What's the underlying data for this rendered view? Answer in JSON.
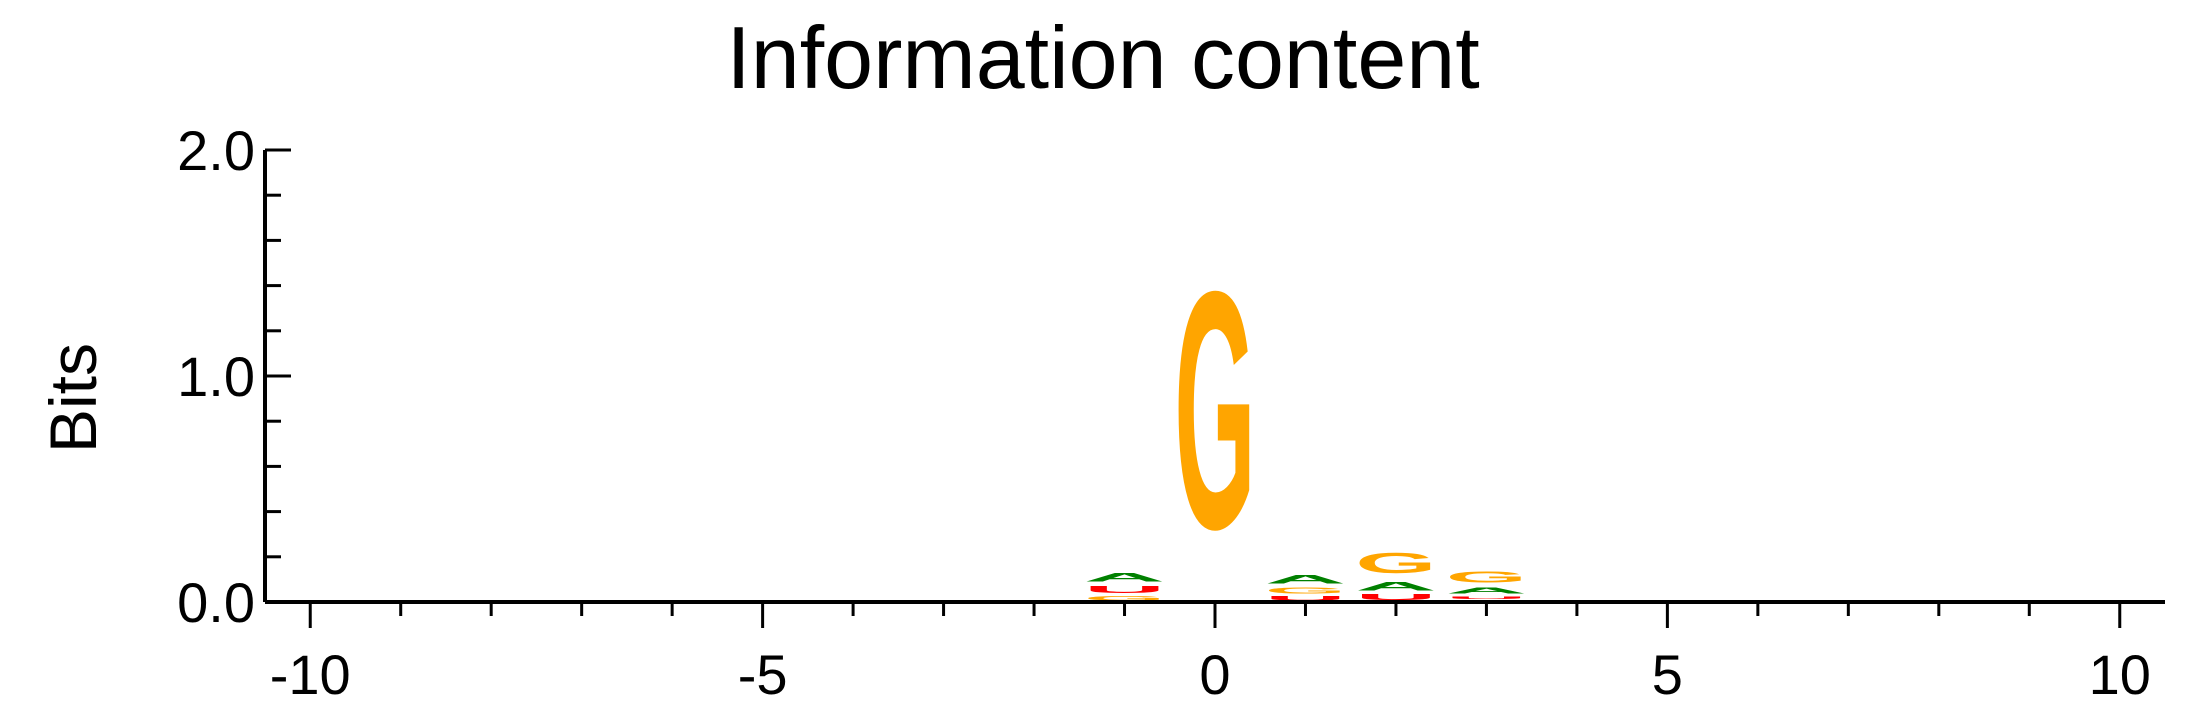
{
  "chart_data": {
    "type": "sequence-logo",
    "title": "Information content",
    "ylabel": "Bits",
    "xlabel": "",
    "xlim": [
      -10.5,
      10.5
    ],
    "ylim": [
      0,
      2
    ],
    "x_ticks": [
      -10,
      -5,
      0,
      5,
      10
    ],
    "x_tick_labels": [
      "-10",
      "-5",
      "0",
      "5",
      "10"
    ],
    "y_ticks": [
      0,
      1,
      2
    ],
    "y_tick_labels": [
      "0.0",
      "1.0",
      "2.0"
    ],
    "colors": {
      "A": "#008000",
      "C": "#0000cc",
      "G": "#ffa500",
      "U": "#ff0000"
    },
    "positions": [
      {
        "x": -2,
        "letters": [
          {
            "base": "A",
            "bits": 0.01
          }
        ]
      },
      {
        "x": -1,
        "letters": [
          {
            "base": "G",
            "bits": 0.03
          },
          {
            "base": "U",
            "bits": 0.05
          },
          {
            "base": "A",
            "bits": 0.06
          }
        ]
      },
      {
        "x": 0,
        "letters": [
          {
            "base": "G",
            "bits": 1.68
          }
        ]
      },
      {
        "x": 1,
        "letters": [
          {
            "base": "U",
            "bits": 0.03
          },
          {
            "base": "G",
            "bits": 0.04
          },
          {
            "base": "A",
            "bits": 0.06
          }
        ]
      },
      {
        "x": 2,
        "letters": [
          {
            "base": "U",
            "bits": 0.04
          },
          {
            "base": "A",
            "bits": 0.06
          },
          {
            "base": "G",
            "bits": 0.14
          }
        ]
      },
      {
        "x": 3,
        "letters": [
          {
            "base": "C",
            "bits": 0.01
          },
          {
            "base": "U",
            "bits": 0.02
          },
          {
            "base": "A",
            "bits": 0.04
          },
          {
            "base": "G",
            "bits": 0.08
          }
        ]
      }
    ]
  }
}
